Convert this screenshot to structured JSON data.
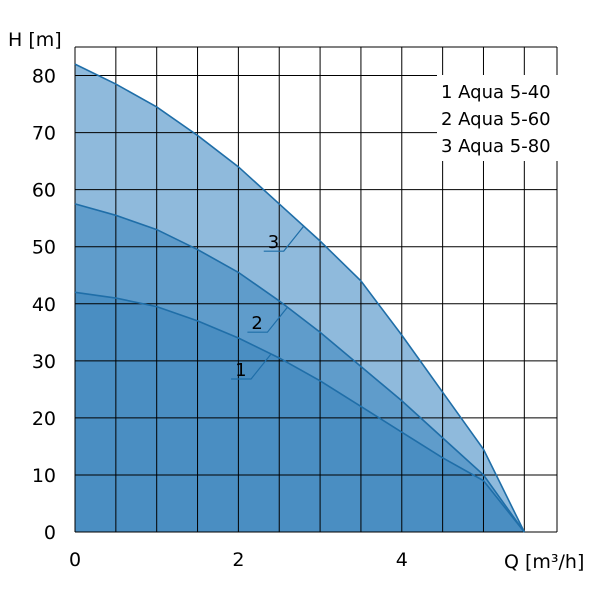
{
  "chart_data": {
    "type": "area",
    "xlabel": "Q [m³/h]",
    "ylabel": "H [m]",
    "xlim": [
      0,
      5.9
    ],
    "ylim": [
      0,
      85
    ],
    "x_ticks": [
      "0",
      "2",
      "4"
    ],
    "y_ticks": [
      "0",
      "10",
      "20",
      "30",
      "40",
      "50",
      "60",
      "70",
      "80"
    ],
    "grid": true,
    "legend_position": "top-right",
    "legend": [
      "1 Aqua 5-40",
      "2 Aqua 5-60",
      "3 Aqua 5-80"
    ],
    "series": [
      {
        "label": "1",
        "x": [
          0,
          0.5,
          1,
          1.5,
          2,
          2.5,
          3,
          3.5,
          4,
          4.5,
          5,
          5.5
        ],
        "y": [
          42,
          41,
          39.5,
          37,
          34,
          30.5,
          26.5,
          22,
          17.5,
          13,
          9,
          0
        ],
        "color": "#4a8ec2"
      },
      {
        "label": "2",
        "x": [
          0,
          0.5,
          1,
          1.5,
          2,
          2.5,
          3,
          3.5,
          4,
          4.5,
          5,
          5.5
        ],
        "y": [
          57.5,
          55.5,
          53,
          49.5,
          45.5,
          40.5,
          35,
          29,
          23,
          16.5,
          10,
          0
        ],
        "color": "#5f9ccb"
      },
      {
        "label": "3",
        "x": [
          0,
          0.5,
          1,
          1.5,
          2,
          2.5,
          3,
          3.5,
          4,
          4.5,
          5,
          5.5
        ],
        "y": [
          82,
          78.5,
          74.5,
          69.5,
          64,
          57.5,
          51,
          44,
          34.5,
          24.5,
          14.5,
          0
        ],
        "color": "#8fbadc"
      }
    ]
  }
}
